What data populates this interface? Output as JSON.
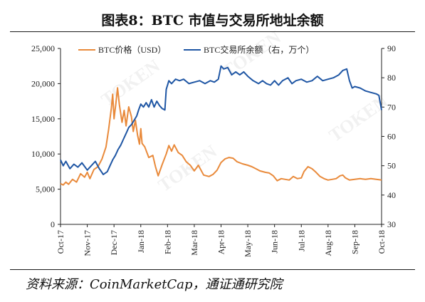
{
  "title": "图表8：BTC 市值与交易所地址余额",
  "source": "资料来源：CoinMarketCap，通证通研究院",
  "colors": {
    "price": "#E98A3B",
    "balance": "#1F56A4"
  },
  "chart_data": {
    "type": "line",
    "title": "图表8：BTC 市值与交易所地址余额",
    "x": [
      "Oct-17",
      "Nov-17",
      "Dec-17",
      "Jan-18",
      "Feb-18",
      "Mar-18",
      "Apr-18",
      "May-18",
      "Jun-18",
      "Jul-18",
      "Aug-18",
      "Sep-18",
      "Oct-18"
    ],
    "y_left": {
      "lim": [
        0,
        25000
      ],
      "ticks": [
        "0",
        "5,000",
        "10,000",
        "15,000",
        "20,000",
        "25,000"
      ]
    },
    "y_right": {
      "lim": [
        30,
        90
      ],
      "ticks": [
        "30",
        "40",
        "50",
        "60",
        "70",
        "80",
        "90"
      ]
    },
    "grid": false,
    "legend_position": "top",
    "series": [
      {
        "name": "BTC价格（USD）",
        "axis": "left",
        "color": "#E98A3B",
        "points": [
          [
            0,
            5800
          ],
          [
            0.1,
            5600
          ],
          [
            0.2,
            6000
          ],
          [
            0.3,
            5700
          ],
          [
            0.45,
            6400
          ],
          [
            0.6,
            6000
          ],
          [
            0.75,
            7200
          ],
          [
            0.9,
            6700
          ],
          [
            1.0,
            7400
          ],
          [
            1.1,
            6500
          ],
          [
            1.25,
            7800
          ],
          [
            1.4,
            8200
          ],
          [
            1.55,
            9300
          ],
          [
            1.7,
            11000
          ],
          [
            1.8,
            13500
          ],
          [
            1.9,
            16500
          ],
          [
            1.95,
            18500
          ],
          [
            2.0,
            15000
          ],
          [
            2.07,
            17200
          ],
          [
            2.13,
            19400
          ],
          [
            2.2,
            17000
          ],
          [
            2.3,
            14500
          ],
          [
            2.38,
            16200
          ],
          [
            2.45,
            14000
          ],
          [
            2.55,
            16700
          ],
          [
            2.65,
            15300
          ],
          [
            2.72,
            13200
          ],
          [
            2.8,
            14800
          ],
          [
            2.88,
            12700
          ],
          [
            2.95,
            11400
          ],
          [
            3.0,
            13600
          ],
          [
            3.05,
            11500
          ],
          [
            3.15,
            11000
          ],
          [
            3.3,
            9500
          ],
          [
            3.45,
            9800
          ],
          [
            3.55,
            8200
          ],
          [
            3.65,
            6900
          ],
          [
            3.8,
            8500
          ],
          [
            3.95,
            10000
          ],
          [
            4.05,
            11200
          ],
          [
            4.15,
            10400
          ],
          [
            4.25,
            11300
          ],
          [
            4.4,
            10200
          ],
          [
            4.55,
            9800
          ],
          [
            4.7,
            8900
          ],
          [
            4.85,
            8400
          ],
          [
            5.0,
            7600
          ],
          [
            5.15,
            8400
          ],
          [
            5.35,
            7000
          ],
          [
            5.55,
            6800
          ],
          [
            5.7,
            7100
          ],
          [
            5.85,
            7700
          ],
          [
            6.0,
            8800
          ],
          [
            6.15,
            9300
          ],
          [
            6.3,
            9500
          ],
          [
            6.45,
            9400
          ],
          [
            6.6,
            8900
          ],
          [
            6.8,
            8600
          ],
          [
            7.0,
            8400
          ],
          [
            7.15,
            8200
          ],
          [
            7.3,
            7900
          ],
          [
            7.45,
            7600
          ],
          [
            7.65,
            7400
          ],
          [
            7.8,
            7300
          ],
          [
            7.95,
            6900
          ],
          [
            8.1,
            6200
          ],
          [
            8.25,
            6500
          ],
          [
            8.4,
            6400
          ],
          [
            8.55,
            6300
          ],
          [
            8.7,
            6800
          ],
          [
            8.85,
            6500
          ],
          [
            9.0,
            6600
          ],
          [
            9.1,
            7500
          ],
          [
            9.25,
            8200
          ],
          [
            9.4,
            7900
          ],
          [
            9.55,
            7400
          ],
          [
            9.7,
            6800
          ],
          [
            9.85,
            6500
          ],
          [
            10.0,
            6300
          ],
          [
            10.15,
            6400
          ],
          [
            10.3,
            6500
          ],
          [
            10.45,
            6900
          ],
          [
            10.55,
            7000
          ],
          [
            10.65,
            6600
          ],
          [
            10.8,
            6300
          ],
          [
            11.0,
            6400
          ],
          [
            11.2,
            6500
          ],
          [
            11.4,
            6400
          ],
          [
            11.6,
            6500
          ],
          [
            11.8,
            6400
          ],
          [
            12.0,
            6300
          ]
        ]
      },
      {
        "name": "BTC交易所余额（右，万个）",
        "axis": "right",
        "color": "#1F56A4",
        "points": [
          [
            0,
            52
          ],
          [
            0.1,
            50
          ],
          [
            0.2,
            51.5
          ],
          [
            0.35,
            49
          ],
          [
            0.5,
            50.5
          ],
          [
            0.65,
            49.5
          ],
          [
            0.8,
            51
          ],
          [
            1.0,
            48.5
          ],
          [
            1.15,
            50
          ],
          [
            1.3,
            51.5
          ],
          [
            1.45,
            49
          ],
          [
            1.6,
            47
          ],
          [
            1.75,
            48
          ],
          [
            1.85,
            50
          ],
          [
            1.95,
            52
          ],
          [
            2.05,
            53.5
          ],
          [
            2.15,
            55.5
          ],
          [
            2.25,
            57
          ],
          [
            2.35,
            59
          ],
          [
            2.45,
            61
          ],
          [
            2.55,
            63
          ],
          [
            2.65,
            64
          ],
          [
            2.75,
            65.5
          ],
          [
            2.85,
            67
          ],
          [
            2.92,
            69
          ],
          [
            3.0,
            71
          ],
          [
            3.1,
            70
          ],
          [
            3.2,
            71.5
          ],
          [
            3.3,
            70
          ],
          [
            3.4,
            72.5
          ],
          [
            3.5,
            70
          ],
          [
            3.6,
            72
          ],
          [
            3.7,
            70.5
          ],
          [
            3.8,
            69.5
          ],
          [
            3.9,
            69
          ],
          [
            3.95,
            76
          ],
          [
            4.05,
            79
          ],
          [
            4.15,
            78
          ],
          [
            4.3,
            79.5
          ],
          [
            4.45,
            79
          ],
          [
            4.6,
            79.5
          ],
          [
            4.8,
            78
          ],
          [
            5.0,
            78.5
          ],
          [
            5.2,
            79
          ],
          [
            5.4,
            78
          ],
          [
            5.6,
            79
          ],
          [
            5.75,
            78.5
          ],
          [
            5.9,
            79.5
          ],
          [
            6.0,
            84
          ],
          [
            6.1,
            83
          ],
          [
            6.25,
            83.5
          ],
          [
            6.4,
            81
          ],
          [
            6.55,
            82
          ],
          [
            6.7,
            81
          ],
          [
            6.85,
            82
          ],
          [
            7.0,
            80.5
          ],
          [
            7.2,
            79
          ],
          [
            7.4,
            78
          ],
          [
            7.55,
            79
          ],
          [
            7.7,
            78
          ],
          [
            7.85,
            77.5
          ],
          [
            8.0,
            79
          ],
          [
            8.15,
            77.5
          ],
          [
            8.3,
            79
          ],
          [
            8.5,
            80
          ],
          [
            8.65,
            78
          ],
          [
            8.8,
            79
          ],
          [
            9.0,
            79.5
          ],
          [
            9.2,
            78.5
          ],
          [
            9.4,
            79
          ],
          [
            9.6,
            80.5
          ],
          [
            9.8,
            79
          ],
          [
            10.0,
            79.5
          ],
          [
            10.2,
            80
          ],
          [
            10.4,
            81
          ],
          [
            10.55,
            82.5
          ],
          [
            10.7,
            83
          ],
          [
            10.8,
            79
          ],
          [
            10.9,
            76.5
          ],
          [
            11.0,
            77
          ],
          [
            11.2,
            76.5
          ],
          [
            11.4,
            75.5
          ],
          [
            11.6,
            75
          ],
          [
            11.8,
            74.5
          ],
          [
            11.9,
            74
          ],
          [
            12.0,
            69
          ]
        ]
      }
    ]
  }
}
